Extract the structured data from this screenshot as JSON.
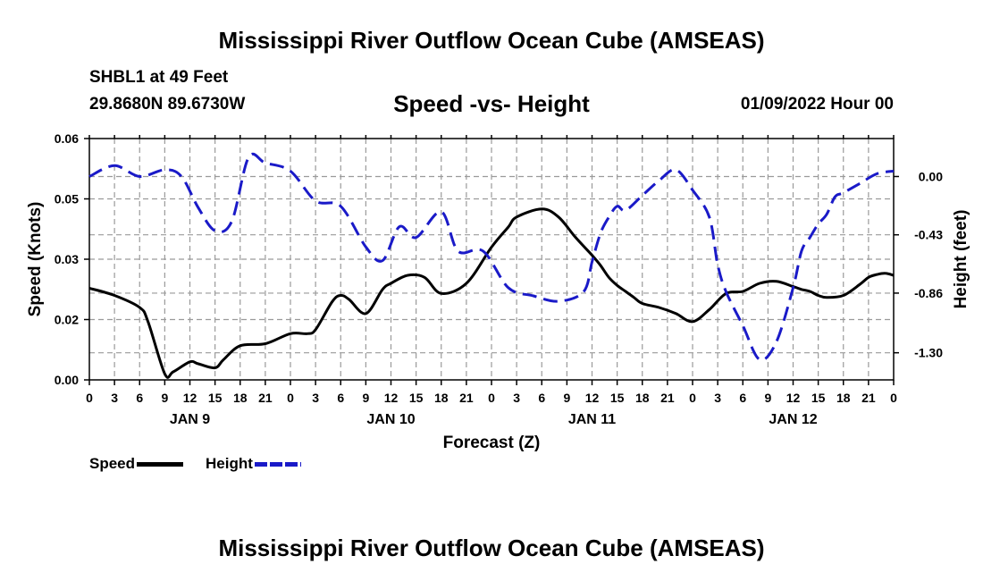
{
  "header": {
    "title": "Mississippi River Outflow Ocean Cube (AMSEAS)",
    "station": "SHBL1 at 49 Feet",
    "coords": "29.8680N  89.6730W",
    "subtitle": "Speed -vs- Height",
    "datestamp": "01/09/2022 Hour 00"
  },
  "footer": {
    "title": "Mississippi River Outflow Ocean Cube (AMSEAS)"
  },
  "legend": {
    "speed_label": "Speed",
    "height_label": "Height"
  },
  "colors": {
    "speed": "#000000",
    "height": "#1a1ac8",
    "grid": "#9a9a9a"
  },
  "chart_data": {
    "type": "line",
    "title": "Speed -vs- Height",
    "xlabel": "Forecast (Z)",
    "ylabel": "Speed (Knots)",
    "y2label": "Height (feet)",
    "x_range": [
      0,
      96
    ],
    "x_tick_hours": [
      0,
      3,
      6,
      9,
      12,
      15,
      18,
      21,
      24,
      27,
      30,
      33,
      36,
      39,
      42,
      45,
      48,
      51,
      54,
      57,
      60,
      63,
      66,
      69,
      72,
      75,
      78,
      81,
      84,
      87,
      90,
      93,
      96
    ],
    "x_tick_labels": [
      "0",
      "3",
      "6",
      "9",
      "12",
      "15",
      "18",
      "21",
      "0",
      "3",
      "6",
      "9",
      "12",
      "15",
      "18",
      "21",
      "0",
      "3",
      "6",
      "9",
      "12",
      "15",
      "18",
      "21",
      "0",
      "3",
      "6",
      "9",
      "12",
      "15",
      "18",
      "21",
      "0"
    ],
    "day_labels": [
      {
        "hour": 12,
        "label": "JAN 9"
      },
      {
        "hour": 36,
        "label": "JAN 10"
      },
      {
        "hour": 60,
        "label": "JAN 11"
      },
      {
        "hour": 84,
        "label": "JAN 12"
      }
    ],
    "ylim": [
      0,
      0.06
    ],
    "y_ticks": [
      0,
      0.015,
      0.03,
      0.045,
      0.06
    ],
    "y_tick_labels": [
      "0.00",
      "0.02",
      "0.03",
      "0.05",
      "0.06"
    ],
    "y2lim": [
      -1.5,
      0.28
    ],
    "y2_ticks": [
      0,
      -0.43,
      -0.86,
      -1.3
    ],
    "y2_tick_labels": [
      "0.00",
      "-0.43",
      "-0.86",
      "-1.30"
    ],
    "series": [
      {
        "name": "Speed",
        "axis": "left",
        "style": "solid",
        "x": [
          0,
          3,
          6,
          7,
          9,
          10,
          12,
          13,
          15,
          16,
          18,
          21,
          24,
          26,
          27,
          29,
          30,
          31,
          33,
          35,
          36,
          38,
          40,
          42,
          45,
          48,
          50,
          51,
          54,
          56,
          58,
          60,
          61,
          62,
          63,
          64,
          65,
          66,
          68,
          70,
          72,
          74,
          76,
          78,
          80,
          82,
          84,
          85,
          86,
          87,
          88,
          90,
          92,
          93,
          94,
          95,
          96
        ],
        "values": [
          0.0228,
          0.021,
          0.018,
          0.0145,
          0.0015,
          0.002,
          0.0045,
          0.004,
          0.003,
          0.005,
          0.0085,
          0.009,
          0.0115,
          0.0115,
          0.0125,
          0.0195,
          0.021,
          0.02,
          0.0165,
          0.0225,
          0.024,
          0.026,
          0.0255,
          0.0215,
          0.024,
          0.033,
          0.038,
          0.0405,
          0.0425,
          0.0405,
          0.0355,
          0.031,
          0.0285,
          0.0255,
          0.0235,
          0.022,
          0.0205,
          0.019,
          0.018,
          0.0165,
          0.0145,
          0.0175,
          0.0215,
          0.022,
          0.024,
          0.0245,
          0.0232,
          0.0225,
          0.022,
          0.021,
          0.0205,
          0.021,
          0.0238,
          0.0255,
          0.0262,
          0.0265,
          0.026
        ]
      },
      {
        "name": "Height",
        "axis": "right",
        "style": "dashed",
        "x": [
          0,
          3,
          6,
          9,
          11,
          13,
          15,
          17,
          19,
          21,
          24,
          27,
          30,
          33,
          35,
          37,
          39,
          42,
          44,
          47,
          50,
          53,
          56,
          59,
          60,
          61,
          62,
          63,
          64,
          66,
          68,
          70,
          72,
          74,
          75,
          76,
          78,
          80,
          82,
          84,
          85,
          86,
          87,
          88,
          89,
          90,
          92,
          94,
          96
        ],
        "values": [
          0.0,
          0.08,
          0.0,
          0.05,
          0.0,
          -0.23,
          -0.4,
          -0.33,
          0.14,
          0.1,
          0.04,
          -0.18,
          -0.22,
          -0.52,
          -0.62,
          -0.37,
          -0.45,
          -0.26,
          -0.55,
          -0.55,
          -0.82,
          -0.88,
          -0.92,
          -0.85,
          -0.63,
          -0.42,
          -0.3,
          -0.22,
          -0.25,
          -0.14,
          -0.03,
          0.05,
          -0.1,
          -0.3,
          -0.65,
          -0.85,
          -1.1,
          -1.35,
          -1.22,
          -0.82,
          -0.55,
          -0.45,
          -0.35,
          -0.28,
          -0.15,
          -0.12,
          -0.05,
          0.02,
          0.04
        ]
      }
    ]
  }
}
